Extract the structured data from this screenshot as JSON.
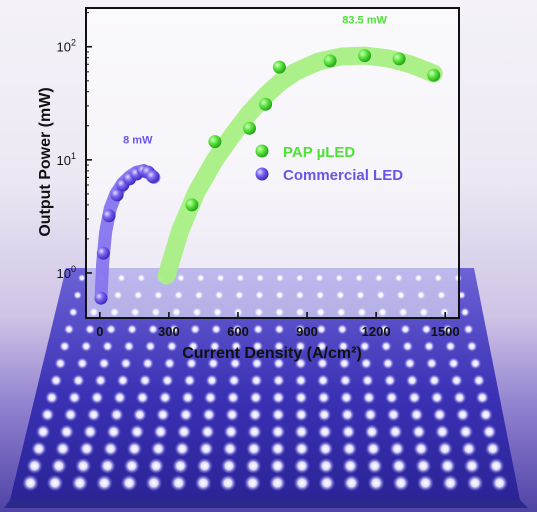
{
  "chart_data": {
    "type": "scatter",
    "xlabel": "Current Density (A/cm²)",
    "ylabel": "Output Power (mW)",
    "xlim": [
      -60,
      1560
    ],
    "ylim": [
      0.4,
      220
    ],
    "y_scale": "log",
    "x_ticks": [
      0,
      300,
      600,
      900,
      1200,
      1500
    ],
    "x_tick_labels": [
      "0",
      "300",
      "600",
      "900",
      "1200",
      "1500"
    ],
    "y_ticks": [
      1,
      10,
      100
    ],
    "y_tick_labels": [
      "10",
      "10",
      "10"
    ],
    "y_tick_exponents": [
      "0",
      "1",
      "2"
    ],
    "legend_position": "center-right",
    "series": [
      {
        "name": "PAP µLED",
        "color": "#4fe13a",
        "band_color": "#a8ef84",
        "x": [
          400,
          500,
          650,
          720,
          780,
          1000,
          1150,
          1300,
          1450
        ],
        "y": [
          4.0,
          14.5,
          19.0,
          31.0,
          66.0,
          75.0,
          83.5,
          78.0,
          56.0
        ],
        "band_x": [
          290,
          350,
          420,
          500,
          580,
          650,
          720,
          780,
          850,
          950,
          1050,
          1150,
          1250,
          1350,
          1450
        ],
        "band_y": [
          0.95,
          2.4,
          5.2,
          10.0,
          17.0,
          26.0,
          37.0,
          48.0,
          60.0,
          74.0,
          82.0,
          83.5,
          79.0,
          70.0,
          58.0
        ]
      },
      {
        "name": "Commercial LED",
        "color": "#6a55ea",
        "band_color": "#8575ee",
        "x": [
          5,
          15,
          40,
          75,
          100,
          130,
          160,
          190,
          210,
          230
        ],
        "y": [
          0.6,
          1.5,
          3.2,
          4.9,
          6.0,
          6.8,
          7.5,
          8.0,
          7.8,
          7.1
        ],
        "band_x": [
          5,
          12,
          25,
          45,
          70,
          100,
          130,
          160,
          190,
          215,
          235
        ],
        "band_y": [
          0.6,
          1.2,
          2.3,
          3.7,
          5.0,
          6.2,
          7.1,
          7.8,
          8.0,
          7.6,
          7.0
        ]
      }
    ],
    "annotations": [
      {
        "text": "83.5 mW",
        "x": 1150,
        "y": 160,
        "color": "#4fe13a"
      },
      {
        "text": "8 mW",
        "x": 165,
        "y": 14,
        "color": "#6a55ea"
      }
    ]
  },
  "background": {
    "led_array_color": "#3b33b8",
    "led_glow_color": "#f3f1ff"
  }
}
